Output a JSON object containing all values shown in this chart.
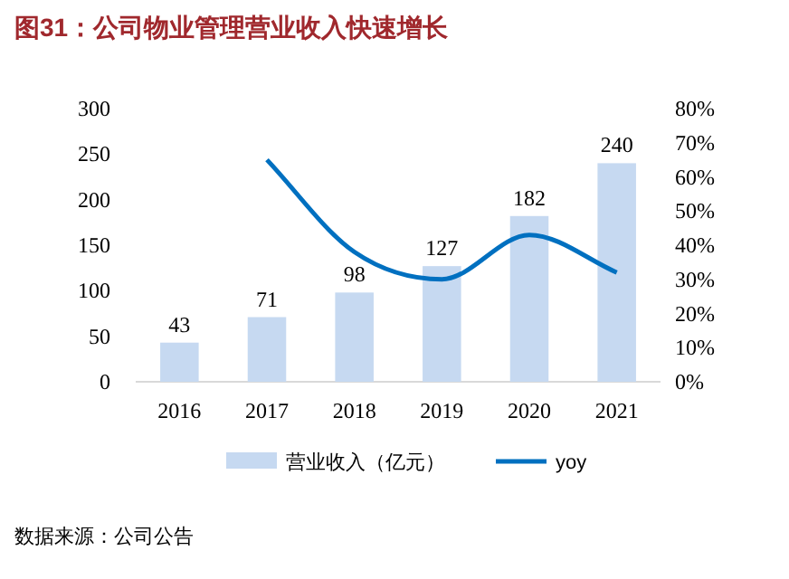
{
  "chart_data": {
    "type": "bar",
    "title": "图31：公司物业管理营业收入快速增长",
    "categories": [
      "2016",
      "2017",
      "2018",
      "2019",
      "2020",
      "2021"
    ],
    "series": [
      {
        "name": "营业收入（亿元）",
        "color": "#c6d9f1",
        "values": [
          43,
          71,
          98,
          127,
          182,
          240
        ],
        "value_labels": [
          "43",
          "71",
          "98",
          "127",
          "182",
          "240"
        ]
      },
      {
        "name": "yoy",
        "type": "line",
        "axis": "y2",
        "color": "#0070c0",
        "values": [
          null,
          65,
          38,
          30,
          43,
          32
        ]
      }
    ],
    "ylim": [
      0,
      300
    ],
    "yticks": [
      0,
      50,
      100,
      150,
      200,
      250,
      300
    ],
    "y2lim": [
      0,
      80
    ],
    "y2ticks": [
      {
        "value": 0,
        "label": "0%"
      },
      {
        "value": 10,
        "label": "10%"
      },
      {
        "value": 20,
        "label": "20%"
      },
      {
        "value": 30,
        "label": "30%"
      },
      {
        "value": 40,
        "label": "40%"
      },
      {
        "value": 50,
        "label": "50%"
      },
      {
        "value": 60,
        "label": "60%"
      },
      {
        "value": 70,
        "label": "70%"
      },
      {
        "value": 80,
        "label": "80%"
      }
    ],
    "legend": "bottom",
    "annotations": [
      "数据来源：公司公告"
    ]
  }
}
